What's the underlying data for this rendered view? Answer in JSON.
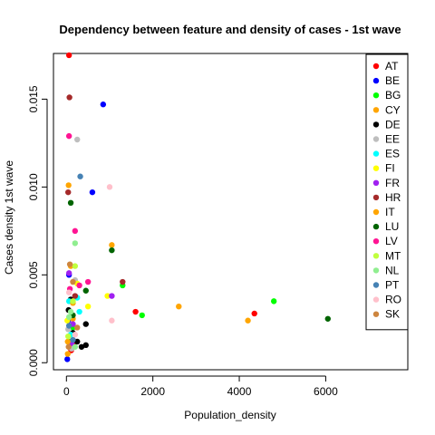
{
  "chart_data": {
    "type": "scatter",
    "title": "Dependency between feature and density of cases -  1st wave",
    "xlabel": "Population_density",
    "ylabel": "Cases density  1st wave",
    "xlim": [
      -300,
      7900
    ],
    "ylim": [
      -0.0004,
      0.0176
    ],
    "x_ticks": [
      0,
      2000,
      4000,
      6000
    ],
    "x_tick_labels": [
      "0",
      "2000",
      "4000",
      "6000"
    ],
    "y_ticks": [
      0,
      0.005,
      0.01,
      0.015
    ],
    "y_tick_labels": [
      "0.000",
      "0.005",
      "0.010",
      "0.015"
    ],
    "legend_position": "top-right",
    "grid": false,
    "series": [
      {
        "name": "AT",
        "color": "#FF0000",
        "points": [
          [
            60,
            0.0175
          ],
          [
            1600,
            0.0029
          ],
          [
            4350,
            0.0028
          ],
          [
            110,
            0.0007
          ],
          [
            200,
            0.0012
          ]
        ]
      },
      {
        "name": "BE",
        "color": "#0000FF",
        "points": [
          [
            850,
            0.0147
          ],
          [
            600,
            0.0097
          ],
          [
            60,
            0.005
          ],
          [
            20,
            0.0002
          ],
          [
            40,
            0.0024
          ]
        ]
      },
      {
        "name": "BG",
        "color": "#00FF00",
        "points": [
          [
            1300,
            0.0044
          ],
          [
            1750,
            0.0027
          ],
          [
            4800,
            0.0035
          ],
          [
            60,
            0.0012
          ],
          [
            150,
            0.002
          ]
        ]
      },
      {
        "name": "CY",
        "color": "#FFA500",
        "points": [
          [
            2600,
            0.0032
          ],
          [
            50,
            0.0101
          ],
          [
            100,
            0.0055
          ],
          [
            30,
            0.0005
          ],
          [
            150,
            0.0025
          ]
        ]
      },
      {
        "name": "DE",
        "color": "#000000",
        "points": [
          [
            450,
            0.0022
          ],
          [
            50,
            0.003
          ],
          [
            450,
            0.001
          ],
          [
            150,
            0.0017
          ],
          [
            250,
            0.0012
          ],
          [
            350,
            0.0009
          ],
          [
            100,
            0.0036
          ]
        ]
      },
      {
        "name": "EE",
        "color": "#BEBEBE",
        "points": [
          [
            250,
            0.0127
          ],
          [
            200,
            0.0047
          ],
          [
            40,
            0.0019
          ],
          [
            120,
            0.0008
          ]
        ]
      },
      {
        "name": "ES",
        "color": "#00FFFF",
        "points": [
          [
            250,
            0.0037
          ],
          [
            300,
            0.0029
          ],
          [
            60,
            0.0035
          ],
          [
            100,
            0.0016
          ]
        ]
      },
      {
        "name": "FI",
        "color": "#FFFF00",
        "points": [
          [
            950,
            0.0038
          ],
          [
            250,
            0.0045
          ],
          [
            20,
            0.0024
          ],
          [
            500,
            0.0032
          ]
        ]
      },
      {
        "name": "FR",
        "color": "#A020F0",
        "points": [
          [
            1050,
            0.0038
          ],
          [
            60,
            0.0051
          ],
          [
            150,
            0.0022
          ],
          [
            120,
            0.0011
          ]
        ]
      },
      {
        "name": "HR",
        "color": "#A52A2A",
        "points": [
          [
            70,
            0.0151
          ],
          [
            1300,
            0.0046
          ],
          [
            40,
            0.0097
          ],
          [
            200,
            0.0038
          ]
        ]
      },
      {
        "name": "IT",
        "color": "#FFA500",
        "points": [
          [
            1050,
            0.0067
          ],
          [
            4200,
            0.0024
          ],
          [
            30,
            0.0012
          ],
          [
            150,
            0.0034
          ]
        ]
      },
      {
        "name": "LU",
        "color": "#006400",
        "points": [
          [
            1050,
            0.0064
          ],
          [
            6050,
            0.0025
          ],
          [
            100,
            0.0091
          ],
          [
            450,
            0.0041
          ],
          [
            150,
            0.0027
          ]
        ]
      },
      {
        "name": "LV",
        "color": "#FF1493",
        "points": [
          [
            60,
            0.0129
          ],
          [
            200,
            0.0075
          ],
          [
            300,
            0.0044
          ],
          [
            80,
            0.0042
          ],
          [
            500,
            0.0046
          ]
        ]
      },
      {
        "name": "MT",
        "color": "#C0FF3E",
        "points": [
          [
            200,
            0.0055
          ],
          [
            150,
            0.0035
          ],
          [
            40,
            0.0015
          ]
        ]
      },
      {
        "name": "NL",
        "color": "#90EE90",
        "points": [
          [
            200,
            0.0068
          ],
          [
            100,
            0.0029
          ],
          [
            60,
            0.0026
          ],
          [
            200,
            0.0009
          ]
        ]
      },
      {
        "name": "PT",
        "color": "#4682B4",
        "points": [
          [
            320,
            0.0106
          ],
          [
            60,
            0.0021
          ],
          [
            150,
            0.0013
          ]
        ]
      },
      {
        "name": "RO",
        "color": "#FFC0CB",
        "points": [
          [
            1000,
            0.01
          ],
          [
            1050,
            0.0024
          ],
          [
            60,
            0.004
          ],
          [
            200,
            0.0016
          ]
        ]
      },
      {
        "name": "SK",
        "color": "#CD853F",
        "points": [
          [
            80,
            0.0056
          ],
          [
            150,
            0.0046
          ],
          [
            50,
            0.0009
          ],
          [
            250,
            0.002
          ]
        ]
      }
    ]
  }
}
